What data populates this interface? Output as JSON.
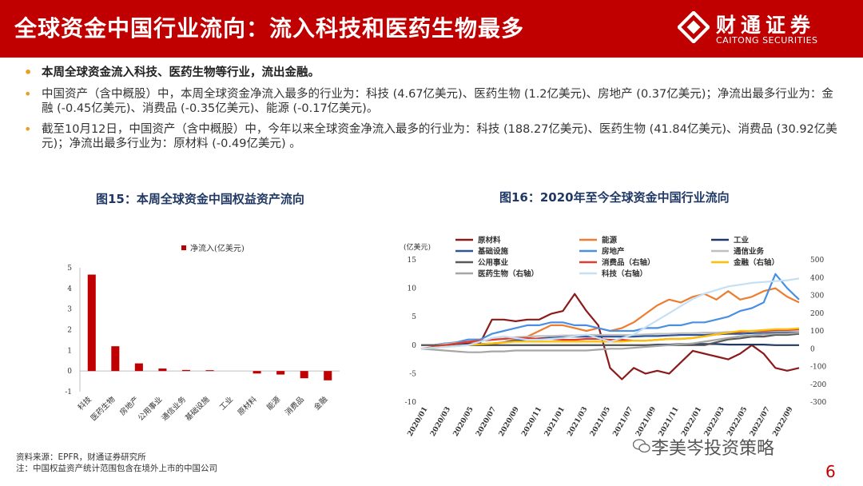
{
  "header": {
    "title": "全球资金中国行业流向：流入科技和医药生物最多",
    "logo_cn": "财通证券",
    "logo_en": "CAITONG SECURITIES"
  },
  "bullets": [
    "本周全球资金流入科技、医药生物等行业，流出金融。",
    "中国资产（含中概股）中，本周全球资金净流入最多的行业为：科技 (4.67亿美元)、医药生物 (1.2亿美元)、房地产 (0.37亿美元)；净流出最多行业为：金融 (-0.45亿美元)、消费品 (-0.35亿美元)、能源 (-0.17亿美元)。",
    "截至10月12日，中国资产（含中概股）中，今年以来全球资金净流入最多的行业为：科技 (188.27亿美元)、医药生物 (41.84亿美元)、消费品 (30.92亿美元)；净流出最多行业为：原材料 (-0.49亿美元) 。"
  ],
  "fig15_title": "图15：本周全球资金中国权益资产流向",
  "fig16_title": "图16：2020年至今全球资金中国行业流向",
  "footnotes": {
    "source": "资料来源：EPFR，财通证券研究所",
    "note": "注：中国权益资产统计范围包含在境外上市的中国公司"
  },
  "watermark": "李美岑投资策略",
  "page_number": "6",
  "chart_data": [
    {
      "type": "bar",
      "title": "",
      "legend": [
        "净流入(亿美元)"
      ],
      "categories": [
        "科技",
        "医药生物",
        "房地产",
        "公用事业",
        "通信业务",
        "基础设施",
        "工业",
        "原材料",
        "能源",
        "消费品",
        "金融"
      ],
      "values": [
        4.67,
        1.2,
        0.37,
        0.12,
        0.05,
        0.04,
        0.0,
        -0.12,
        -0.17,
        -0.35,
        -0.45
      ],
      "ylim": [
        -1,
        5
      ],
      "yticks": [
        "-1",
        "0",
        "1",
        "2",
        "3",
        "4",
        "5"
      ],
      "color": "#c00000"
    },
    {
      "type": "line",
      "title": "",
      "ylabel": "(亿美元)",
      "ylim_left": [
        -10,
        15
      ],
      "ylim_right": [
        -300,
        500
      ],
      "yticks_left": [
        "-10",
        "-5",
        "0",
        "5",
        "10",
        "15"
      ],
      "yticks_right": [
        "-300",
        "-200",
        "-100",
        "0",
        "100",
        "200",
        "300",
        "400",
        "500"
      ],
      "xticks": [
        "2020/01",
        "2020/03",
        "2020/05",
        "2020/07",
        "2020/09",
        "2020/11",
        "2021/01",
        "2021/03",
        "2021/05",
        "2021/07",
        "2021/09",
        "2021/11",
        "2022/01",
        "2022/03",
        "2022/05",
        "2022/07",
        "2022/09"
      ],
      "series": [
        {
          "name": "原材料",
          "color": "#8b1a1a",
          "axis": "left",
          "values": [
            0,
            0,
            0.3,
            0.3,
            0.3,
            0.4,
            4.5,
            4.5,
            4.2,
            4.5,
            4.5,
            5.5,
            6,
            9,
            6,
            3.5,
            -4,
            -6,
            -4,
            -5,
            -4.5,
            -5,
            -3,
            -1,
            -1.5,
            -2,
            -2.5,
            -1.5,
            0,
            -1.5,
            -4,
            -4.5,
            -4
          ]
        },
        {
          "name": "能源",
          "color": "#ed7d31",
          "axis": "left",
          "values": [
            0,
            0,
            0,
            0,
            0,
            0.1,
            0.2,
            0.5,
            1,
            1.5,
            2.5,
            3.5,
            3.5,
            3,
            2.5,
            3,
            2.5,
            3,
            4,
            5.5,
            7,
            8,
            7.5,
            8.5,
            9,
            8,
            9.5,
            8,
            8.5,
            9.5,
            10,
            8.5,
            7.5
          ]
        },
        {
          "name": "工业",
          "color": "#1f3864",
          "axis": "left",
          "values": [
            0,
            0,
            0,
            0,
            0,
            0,
            0,
            0,
            0,
            0,
            0,
            0,
            0,
            0,
            0,
            0,
            0,
            0,
            0,
            0,
            0.1,
            0.1,
            0.2,
            0.2,
            0.2,
            0.2,
            0.1,
            0.1,
            0.1,
            0.1,
            0,
            0,
            0
          ]
        },
        {
          "name": "基础设施",
          "color": "#2e5597",
          "axis": "left",
          "values": [
            0,
            0,
            0.1,
            0.1,
            0.1,
            0.2,
            0.3,
            0.5,
            0.8,
            1,
            1.2,
            1.3,
            1.4,
            1.5,
            1.5,
            1.5,
            1.5,
            1.5,
            1.5,
            1.6,
            1.6,
            1.7,
            1.8,
            1.8,
            1.8,
            1.9,
            2,
            2,
            2.1,
            2.2,
            2.2,
            2.2,
            2.2
          ]
        },
        {
          "name": "房地产",
          "color": "#4a90e2",
          "axis": "left",
          "values": [
            0,
            0,
            0.3,
            0.5,
            1,
            1,
            2,
            2.5,
            3,
            3.5,
            3.5,
            4,
            4,
            3.5,
            3.5,
            3,
            2.5,
            2.5,
            2.5,
            3,
            3,
            3.5,
            3.5,
            4,
            4,
            4.5,
            5,
            6,
            6.5,
            7.5,
            12.5,
            10,
            8
          ]
        },
        {
          "name": "通信业务",
          "color": "#bfbfbf",
          "axis": "left",
          "values": [
            0,
            0,
            0.2,
            0.4,
            0.6,
            0.8,
            1,
            1.2,
            1.4,
            1.5,
            1.6,
            1.6,
            1.7,
            1.7,
            1.8,
            1.8,
            1.8,
            1.8,
            1.8,
            1.9,
            2,
            2,
            2.1,
            2.1,
            2.2,
            2.2,
            2.3,
            2.3,
            2.4,
            2.4,
            2.5,
            2.5,
            2.5
          ]
        },
        {
          "name": "公用事业",
          "color": "#595959",
          "axis": "left",
          "values": [
            0,
            0,
            0,
            0,
            0,
            0,
            0,
            0,
            0,
            0,
            0,
            0,
            0,
            0,
            0,
            0,
            0,
            0,
            0,
            0,
            0,
            0,
            0,
            0,
            0,
            0.5,
            1,
            1.2,
            1.5,
            1.5,
            1.8,
            1.8,
            2
          ]
        },
        {
          "name": "消费品（右轴）",
          "color": "#e03c31",
          "axis": "right",
          "values": [
            0,
            10,
            20,
            30,
            40,
            45,
            50,
            55,
            60,
            60,
            55,
            55,
            50,
            50,
            55,
            55,
            50,
            50,
            45,
            45,
            50,
            55,
            55,
            60,
            70,
            80,
            90,
            95,
            100,
            100,
            105,
            105,
            110
          ]
        },
        {
          "name": "金融（右轴）",
          "color": "#ffc000",
          "axis": "right",
          "values": [
            0,
            5,
            10,
            15,
            20,
            25,
            30,
            35,
            40,
            40,
            40,
            40,
            40,
            40,
            40,
            40,
            40,
            40,
            45,
            45,
            50,
            55,
            55,
            60,
            70,
            80,
            90,
            100,
            100,
            105,
            110,
            110,
            115
          ]
        },
        {
          "name": "医药生物（右轴）",
          "color": "#a6a6a6",
          "axis": "right",
          "values": [
            0,
            -5,
            -10,
            -15,
            -20,
            -20,
            -15,
            -15,
            -10,
            -10,
            -10,
            -10,
            -10,
            -10,
            -10,
            -5,
            0,
            0,
            5,
            10,
            15,
            20,
            25,
            30,
            40,
            50,
            60,
            70,
            75,
            80,
            85,
            85,
            90
          ]
        },
        {
          "name": "科技（右轴）",
          "color": "#c5e0f4",
          "axis": "right",
          "values": [
            0,
            5,
            10,
            15,
            20,
            40,
            60,
            70,
            60,
            50,
            50,
            55,
            60,
            70,
            80,
            60,
            40,
            60,
            80,
            120,
            160,
            200,
            240,
            280,
            310,
            330,
            350,
            360,
            370,
            375,
            380,
            385,
            395
          ]
        }
      ]
    }
  ]
}
